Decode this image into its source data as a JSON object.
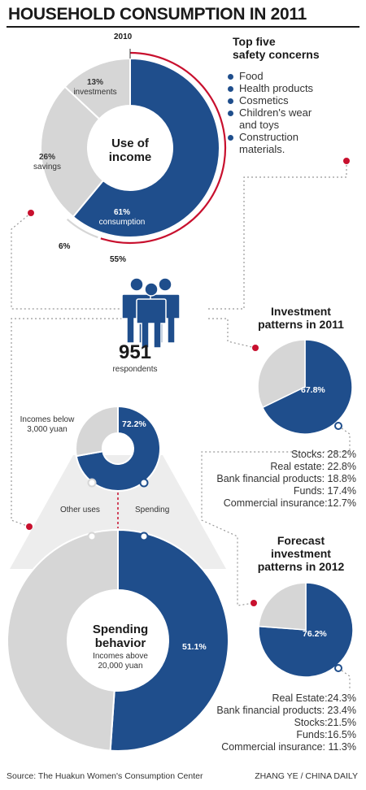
{
  "title": "HOUSEHOLD CONSUMPTION IN 2011",
  "colors": {
    "navy": "#1f4e8c",
    "gray": "#d6d6d6",
    "red": "#c8102e",
    "dotted": "#999999"
  },
  "use_of_income": {
    "center": "Use of\nincome",
    "label_2010": "2010",
    "label_6": "6%",
    "label_55": "55%"
  },
  "safety": {
    "title": "Top five\nsafety concerns",
    "items": [
      "Food",
      "Health products",
      "Cosmetics",
      "Children's wear\nand toys",
      "Construction\nmaterials."
    ]
  },
  "respondents": {
    "number": "951",
    "label": "respondents"
  },
  "investment_2011": {
    "title": "Investment\npatterns in 2011",
    "pie_label": "67.8%",
    "list": [
      "Stocks: 28.2%",
      "Real estate: 22.8%",
      "Bank financial products: 18.8%",
      "Funds: 17.4%",
      "Commercial insurance:12.7%"
    ]
  },
  "forecast_2012": {
    "title": "Forecast\ninvestment\npatterns in 2012",
    "pie_label": "76.2%",
    "list": [
      "Real Estate:24.3%",
      "Bank financial products: 23.4%",
      "Stocks:21.5%",
      "Funds:16.5%",
      "Commercial  insurance: 11.3%"
    ]
  },
  "spending_small": {
    "label": "Incomes below\n3,000 yuan",
    "pct_label": "72.2%"
  },
  "connectors": {
    "other": "Other uses",
    "spending": "Spending"
  },
  "spending_big": {
    "title": "Spending\nbehavior",
    "sub": "Incomes above\n20,000 yuan",
    "pct_label": "51.1%"
  },
  "footer": {
    "source": "Source: The Huakun Women's Consumption Center",
    "credit": "ZHANG YE / CHINA DAILY"
  },
  "chart_data": [
    {
      "type": "pie",
      "labels": [
        "investments",
        "savings",
        "consumption"
      ],
      "values": [
        13,
        26,
        61
      ],
      "value_labels": [
        "13%",
        "26%",
        "61%"
      ],
      "comparison": {
        "year": "2010",
        "consumption": 55,
        "investments": 6
      }
    },
    {
      "type": "pie",
      "labels": [
        "",
        ""
      ],
      "values": [
        67.8,
        32.2
      ],
      "value_labels": [
        "67.8%",
        ""
      ]
    },
    {
      "type": "pie",
      "labels": [
        "",
        ""
      ],
      "values": [
        76.2,
        23.8
      ],
      "value_labels": [
        "76.2%",
        ""
      ]
    },
    {
      "type": "pie",
      "labels": [
        "Spending",
        "Other uses"
      ],
      "values": [
        72.2,
        27.8
      ],
      "value_labels": [
        "72.2%",
        ""
      ]
    },
    {
      "type": "pie",
      "labels": [
        "Spending",
        "Other uses"
      ],
      "values": [
        51.1,
        48.9
      ],
      "value_labels": [
        "51.1%",
        ""
      ]
    }
  ]
}
